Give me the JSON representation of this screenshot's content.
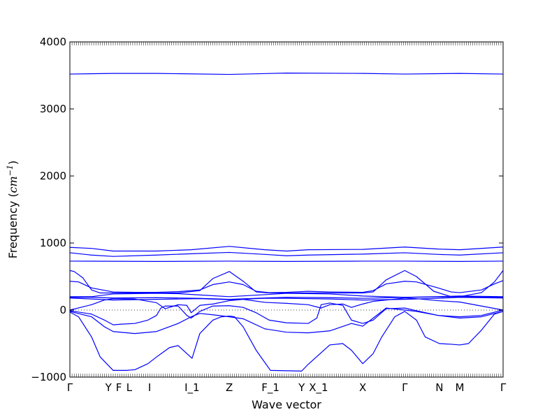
{
  "chart_data": {
    "type": "line",
    "title": "",
    "xlabel": "Wave vector",
    "ylabel": "Frequency ($cm^{-1}$)",
    "ylabel_parts": {
      "prefix": "Frequency (",
      "unit": "cm",
      "exponent": "−1",
      "suffix": ")"
    },
    "ylim": [
      -1000,
      4000
    ],
    "yticks": [
      -1000,
      0,
      1000,
      2000,
      3000,
      4000
    ],
    "ytick_labels": [
      "−1000",
      "0",
      "1000",
      "2000",
      "3000",
      "4000"
    ],
    "xlim": [
      0,
      1
    ],
    "high_symmetry_points": [
      {
        "label": "Γ",
        "x": 0.0
      },
      {
        "label": "Y",
        "x": 0.089
      },
      {
        "label": "F",
        "x": 0.113
      },
      {
        "label": "L",
        "x": 0.137
      },
      {
        "label": "I",
        "x": 0.184
      },
      {
        "label": "I_1",
        "x": 0.282
      },
      {
        "label": "Z",
        "x": 0.368
      },
      {
        "label": "F_1",
        "x": 0.463
      },
      {
        "label": "Y",
        "x": 0.535
      },
      {
        "label": "X_1",
        "x": 0.574
      },
      {
        "label": "X",
        "x": 0.676
      },
      {
        "label": "Γ",
        "x": 0.773
      },
      {
        "label": "N",
        "x": 0.853
      },
      {
        "label": "M",
        "x": 0.9
      },
      {
        "label": "Γ",
        "x": 1.0
      }
    ],
    "zero_line": {
      "y": 0,
      "style": "dotted"
    },
    "series_color": "#0000ff",
    "bands": [
      {
        "x": [
          0,
          0.1,
          0.2,
          0.368,
          0.5,
          0.676,
          0.773,
          0.9,
          1.0
        ],
        "y": [
          3520,
          3530,
          3530,
          3515,
          3535,
          3530,
          3520,
          3530,
          3520
        ]
      },
      {
        "x": [
          0,
          0.05,
          0.1,
          0.2,
          0.28,
          0.368,
          0.45,
          0.5,
          0.55,
          0.676,
          0.773,
          0.85,
          0.9,
          1.0
        ],
        "y": [
          935,
          920,
          880,
          880,
          900,
          950,
          900,
          880,
          900,
          905,
          940,
          910,
          900,
          940
        ]
      },
      {
        "x": [
          0,
          0.05,
          0.1,
          0.2,
          0.28,
          0.368,
          0.45,
          0.5,
          0.55,
          0.676,
          0.773,
          0.85,
          0.9,
          1.0
        ],
        "y": [
          855,
          820,
          800,
          820,
          840,
          860,
          830,
          810,
          820,
          835,
          855,
          830,
          820,
          855
        ]
      },
      {
        "x": [
          0,
          0.2,
          0.368,
          0.5,
          0.676,
          0.773,
          0.9,
          1.0
        ],
        "y": [
          730,
          725,
          730,
          725,
          730,
          730,
          725,
          730
        ]
      },
      {
        "x": [
          0,
          0.01,
          0.03,
          0.05,
          0.07,
          0.1,
          0.15,
          0.2,
          0.25,
          0.3,
          0.33,
          0.368,
          0.4,
          0.43,
          0.46,
          0.5,
          0.55,
          0.6,
          0.676,
          0.7,
          0.73,
          0.773,
          0.8,
          0.84,
          0.88,
          0.9,
          0.95,
          0.98,
          1.0
        ],
        "y": [
          590,
          575,
          480,
          300,
          255,
          255,
          255,
          255,
          255,
          290,
          470,
          575,
          430,
          270,
          255,
          255,
          255,
          255,
          255,
          270,
          450,
          590,
          500,
          280,
          200,
          200,
          260,
          420,
          590
        ]
      },
      {
        "x": [
          0,
          0.02,
          0.05,
          0.1,
          0.15,
          0.2,
          0.25,
          0.3,
          0.33,
          0.368,
          0.4,
          0.43,
          0.46,
          0.5,
          0.55,
          0.6,
          0.676,
          0.7,
          0.73,
          0.773,
          0.8,
          0.85,
          0.88,
          0.9,
          0.95,
          0.98,
          1.0
        ],
        "y": [
          430,
          420,
          330,
          270,
          265,
          265,
          275,
          300,
          380,
          420,
          380,
          280,
          260,
          265,
          280,
          270,
          265,
          290,
          390,
          430,
          420,
          330,
          270,
          260,
          300,
          390,
          440
        ]
      },
      {
        "x": [
          0,
          0.05,
          0.1,
          0.2,
          0.25,
          0.3,
          0.368,
          0.45,
          0.5,
          0.6,
          0.676,
          0.773,
          0.85,
          0.9,
          0.95,
          1.0
        ],
        "y": [
          200,
          200,
          240,
          250,
          245,
          225,
          200,
          230,
          250,
          240,
          210,
          190,
          200,
          210,
          205,
          200
        ]
      },
      {
        "x": [
          0,
          0.05,
          0.1,
          0.2,
          0.3,
          0.368,
          0.45,
          0.5,
          0.6,
          0.676,
          0.773,
          0.85,
          0.9,
          1.0
        ],
        "y": [
          190,
          190,
          180,
          185,
          175,
          160,
          180,
          190,
          185,
          175,
          190,
          195,
          200,
          190
        ]
      },
      {
        "x": [
          0,
          0.05,
          0.1,
          0.2,
          0.3,
          0.368,
          0.45,
          0.5,
          0.6,
          0.676,
          0.773,
          0.85,
          0.9,
          0.95,
          1.0
        ],
        "y": [
          180,
          165,
          150,
          160,
          170,
          155,
          175,
          175,
          165,
          150,
          160,
          175,
          190,
          185,
          180
        ]
      },
      {
        "x": [
          0,
          0.05,
          0.08,
          0.1,
          0.15,
          0.2,
          0.22,
          0.25,
          0.27,
          0.28,
          0.3,
          0.33,
          0.368,
          0.4,
          0.45,
          0.5,
          0.55,
          0.58,
          0.6,
          0.63,
          0.65,
          0.676,
          0.7,
          0.73,
          0.773,
          0.8,
          0.85,
          0.9,
          0.95,
          1.0
        ],
        "y": [
          0,
          80,
          150,
          170,
          165,
          110,
          20,
          80,
          70,
          -40,
          70,
          90,
          140,
          160,
          115,
          100,
          80,
          30,
          80,
          90,
          40,
          90,
          130,
          150,
          180,
          170,
          140,
          120,
          60,
          0
        ]
      },
      {
        "x": [
          0,
          0.05,
          0.08,
          0.1,
          0.12,
          0.15,
          0.18,
          0.2,
          0.21,
          0.22,
          0.25,
          0.27,
          0.28,
          0.3,
          0.33,
          0.368,
          0.4,
          0.43,
          0.46,
          0.5,
          0.55,
          0.57,
          0.58,
          0.6,
          0.63,
          0.65,
          0.676,
          0.7,
          0.73,
          0.773,
          0.8,
          0.85,
          0.9,
          0.95,
          1.0
        ],
        "y": [
          -10,
          -60,
          -150,
          -220,
          -210,
          -200,
          -150,
          -80,
          30,
          60,
          60,
          -80,
          -120,
          -20,
          60,
          65,
          40,
          -40,
          -150,
          -190,
          -200,
          -120,
          80,
          105,
          70,
          -150,
          -200,
          -150,
          20,
          30,
          -10,
          -80,
          -100,
          -80,
          0
        ]
      },
      {
        "x": [
          0,
          0.05,
          0.08,
          0.1,
          0.15,
          0.2,
          0.25,
          0.28,
          0.3,
          0.33,
          0.368,
          0.4,
          0.45,
          0.5,
          0.55,
          0.6,
          0.65,
          0.676,
          0.7,
          0.73,
          0.773,
          0.8,
          0.85,
          0.9,
          0.95,
          1.0
        ],
        "y": [
          -20,
          -100,
          -250,
          -320,
          -350,
          -320,
          -200,
          -100,
          -50,
          -70,
          -100,
          -130,
          -280,
          -330,
          -340,
          -310,
          -200,
          -240,
          -120,
          30,
          0,
          -20,
          -80,
          -120,
          -100,
          -20
        ]
      },
      {
        "x": [
          0,
          0.02,
          0.05,
          0.07,
          0.1,
          0.13,
          0.15,
          0.18,
          0.2,
          0.23,
          0.25,
          0.282,
          0.3,
          0.33,
          0.35,
          0.368,
          0.38,
          0.4,
          0.43,
          0.463,
          0.5,
          0.535,
          0.55,
          0.6,
          0.63,
          0.65,
          0.676,
          0.7,
          0.72,
          0.75,
          0.773,
          0.8,
          0.82,
          0.853,
          0.88,
          0.9,
          0.92,
          0.95,
          0.98,
          1.0
        ],
        "y": [
          -30,
          -100,
          -400,
          -700,
          -900,
          -900,
          -890,
          -800,
          -700,
          -560,
          -530,
          -720,
          -350,
          -150,
          -100,
          -90,
          -100,
          -250,
          -600,
          -900,
          -905,
          -910,
          -810,
          -520,
          -500,
          -600,
          -800,
          -650,
          -400,
          -100,
          -20,
          -150,
          -400,
          -500,
          -510,
          -520,
          -500,
          -300,
          -60,
          -20
        ]
      }
    ]
  }
}
